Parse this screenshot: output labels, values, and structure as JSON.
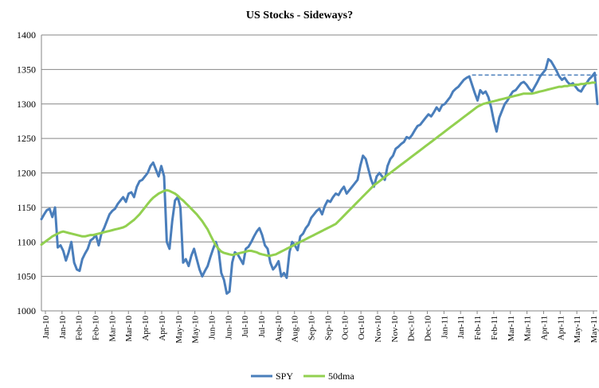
{
  "chart_data": {
    "type": "line",
    "title": "US Stocks  - Sideways?",
    "xlabel": "",
    "ylabel": "",
    "ylim": [
      1000,
      1400
    ],
    "yticks": [
      1000,
      1050,
      1100,
      1150,
      1200,
      1250,
      1300,
      1350,
      1400
    ],
    "x_tick_labels": [
      "Jan-10",
      "Jan-10",
      "Feb-10",
      "Feb-10",
      "Mar-10",
      "Mar-10",
      "Apr-10",
      "Apr-10",
      "May-10",
      "May-10",
      "Jun-10",
      "Jun-10",
      "Jul-10",
      "Jul-10",
      "Aug-10",
      "Aug-10",
      "Sep-10",
      "Sep-10",
      "Oct-10",
      "Oct-10",
      "Nov-10",
      "Nov-10",
      "Dec-10",
      "Dec-10",
      "Jan-11",
      "Jan-11",
      "Feb-11",
      "Feb-11",
      "Mar-11",
      "Mar-11",
      "Apr-11",
      "Apr-11",
      "May-11",
      "May-11"
    ],
    "grid": true,
    "legend": "bottom",
    "series": [
      {
        "name": "SPY",
        "color": "#4a7ebb",
        "values": [
          1133,
          1140,
          1146,
          1148,
          1136,
          1150,
          1092,
          1095,
          1087,
          1073,
          1085,
          1100,
          1070,
          1060,
          1058,
          1075,
          1083,
          1090,
          1102,
          1105,
          1110,
          1095,
          1112,
          1120,
          1130,
          1140,
          1145,
          1148,
          1155,
          1160,
          1165,
          1158,
          1170,
          1172,
          1165,
          1180,
          1188,
          1190,
          1195,
          1200,
          1210,
          1215,
          1205,
          1195,
          1210,
          1195,
          1100,
          1090,
          1130,
          1160,
          1165,
          1150,
          1070,
          1075,
          1065,
          1080,
          1090,
          1075,
          1060,
          1050,
          1058,
          1065,
          1078,
          1090,
          1100,
          1088,
          1055,
          1045,
          1025,
          1028,
          1070,
          1085,
          1082,
          1075,
          1068,
          1090,
          1093,
          1100,
          1108,
          1115,
          1120,
          1110,
          1095,
          1090,
          1070,
          1060,
          1065,
          1072,
          1050,
          1055,
          1048,
          1085,
          1100,
          1095,
          1088,
          1108,
          1112,
          1120,
          1125,
          1135,
          1140,
          1145,
          1148,
          1140,
          1152,
          1160,
          1158,
          1165,
          1170,
          1168,
          1175,
          1180,
          1170,
          1175,
          1180,
          1185,
          1190,
          1210,
          1225,
          1220,
          1205,
          1190,
          1180,
          1195,
          1200,
          1195,
          1190,
          1210,
          1220,
          1225,
          1235,
          1238,
          1242,
          1245,
          1252,
          1250,
          1255,
          1262,
          1268,
          1270,
          1275,
          1280,
          1285,
          1282,
          1288,
          1295,
          1290,
          1298,
          1300,
          1305,
          1310,
          1318,
          1322,
          1325,
          1330,
          1335,
          1338,
          1340,
          1328,
          1316,
          1305,
          1320,
          1315,
          1318,
          1310,
          1295,
          1275,
          1260,
          1280,
          1290,
          1300,
          1305,
          1312,
          1318,
          1320,
          1325,
          1330,
          1332,
          1328,
          1322,
          1318,
          1325,
          1332,
          1340,
          1345,
          1350,
          1365,
          1362,
          1355,
          1348,
          1340,
          1335,
          1338,
          1332,
          1328,
          1330,
          1325,
          1320,
          1318,
          1325,
          1330,
          1336,
          1340,
          1345,
          1300
        ]
      },
      {
        "name": "50dma",
        "color": "#92d050",
        "values": [
          1096,
          1099,
          1102,
          1105,
          1108,
          1110,
          1112,
          1114,
          1115,
          1114,
          1113,
          1112,
          1111,
          1110,
          1109,
          1108,
          1108,
          1109,
          1110,
          1110,
          1111,
          1112,
          1113,
          1114,
          1115,
          1116,
          1117,
          1118,
          1119,
          1120,
          1121,
          1123,
          1126,
          1129,
          1132,
          1136,
          1140,
          1145,
          1150,
          1155,
          1160,
          1164,
          1167,
          1170,
          1172,
          1174,
          1175,
          1174,
          1172,
          1170,
          1167,
          1163,
          1160,
          1156,
          1152,
          1148,
          1144,
          1140,
          1135,
          1130,
          1124,
          1118,
          1110,
          1102,
          1095,
          1090,
          1086,
          1084,
          1083,
          1082,
          1081,
          1082,
          1083,
          1084,
          1085,
          1086,
          1087,
          1087,
          1086,
          1085,
          1083,
          1082,
          1081,
          1080,
          1080,
          1081,
          1082,
          1084,
          1086,
          1088,
          1090,
          1092,
          1094,
          1096,
          1098,
          1100,
          1102,
          1104,
          1106,
          1108,
          1110,
          1112,
          1114,
          1116,
          1118,
          1120,
          1122,
          1124,
          1126,
          1130,
          1134,
          1138,
          1142,
          1146,
          1150,
          1154,
          1158,
          1162,
          1166,
          1170,
          1174,
          1178,
          1182,
          1185,
          1188,
          1191,
          1194,
          1197,
          1200,
          1203,
          1206,
          1209,
          1212,
          1215,
          1218,
          1221,
          1224,
          1227,
          1230,
          1233,
          1236,
          1239,
          1242,
          1245,
          1248,
          1251,
          1254,
          1257,
          1260,
          1263,
          1266,
          1269,
          1272,
          1275,
          1278,
          1281,
          1284,
          1287,
          1290,
          1293,
          1296,
          1298,
          1300,
          1301,
          1302,
          1303,
          1304,
          1305,
          1306,
          1307,
          1308,
          1309,
          1310,
          1311,
          1312,
          1313,
          1314,
          1315,
          1315,
          1315,
          1315,
          1316,
          1317,
          1318,
          1319,
          1320,
          1321,
          1322,
          1323,
          1324,
          1325,
          1325,
          1326,
          1326,
          1327,
          1327,
          1328,
          1328,
          1329,
          1329,
          1330,
          1330,
          1331,
          1331
        ]
      }
    ],
    "annotation": {
      "type": "dashed-line",
      "color": "#4a7ebb",
      "from_index": 158,
      "to_index": 205,
      "value": 1342
    }
  }
}
